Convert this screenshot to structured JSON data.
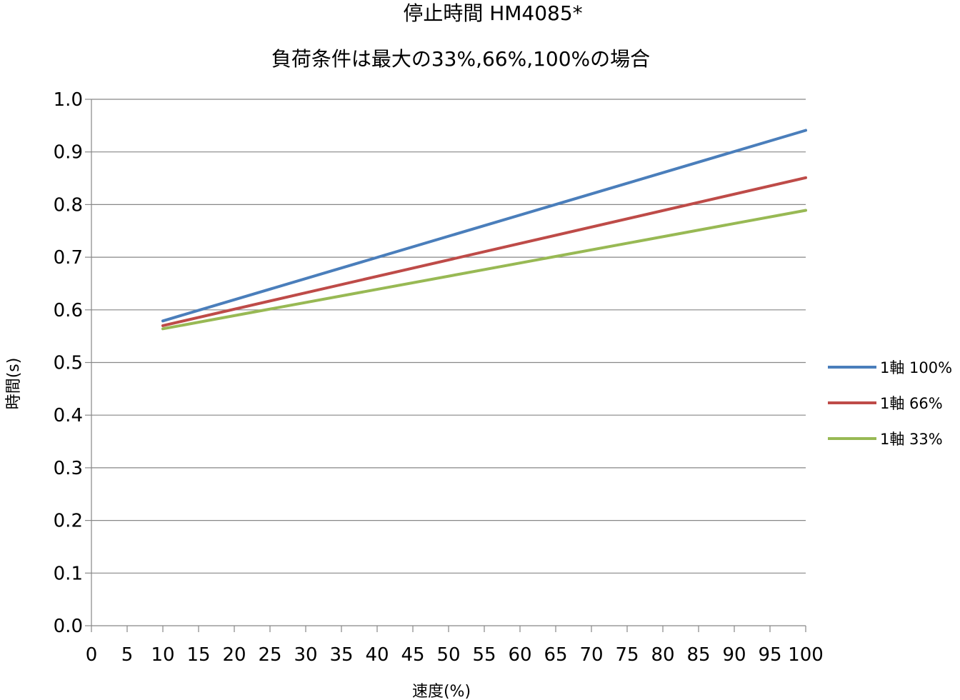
{
  "chart_data": {
    "type": "line",
    "title": "停止時間 HM4085*",
    "subtitle": "負荷条件は最大の33%,66%,100%の場合",
    "xlabel": "速度(%)",
    "ylabel": "時間(s)",
    "xlim": [
      0,
      100
    ],
    "ylim": [
      0,
      1.0
    ],
    "x_ticks": [
      "0",
      "5",
      "10",
      "15",
      "20",
      "25",
      "30",
      "35",
      "40",
      "45",
      "50",
      "55",
      "60",
      "65",
      "70",
      "75",
      "80",
      "85",
      "90",
      "95",
      "100"
    ],
    "y_ticks": [
      "0.0",
      "0.1",
      "0.2",
      "0.3",
      "0.4",
      "0.5",
      "0.6",
      "0.7",
      "0.8",
      "0.9",
      "1.0"
    ],
    "grid": "horizontal",
    "legend_position": "right",
    "series": [
      {
        "name": "1軸 100%",
        "color": "#4a7ebb",
        "points": [
          [
            10,
            0.579
          ],
          [
            100,
            0.941
          ]
        ]
      },
      {
        "name": "1軸 66%",
        "color": "#be4b48",
        "points": [
          [
            10,
            0.57
          ],
          [
            100,
            0.851
          ]
        ]
      },
      {
        "name": "1軸 33%",
        "color": "#98b954",
        "points": [
          [
            10,
            0.564
          ],
          [
            100,
            0.789
          ]
        ]
      }
    ]
  }
}
